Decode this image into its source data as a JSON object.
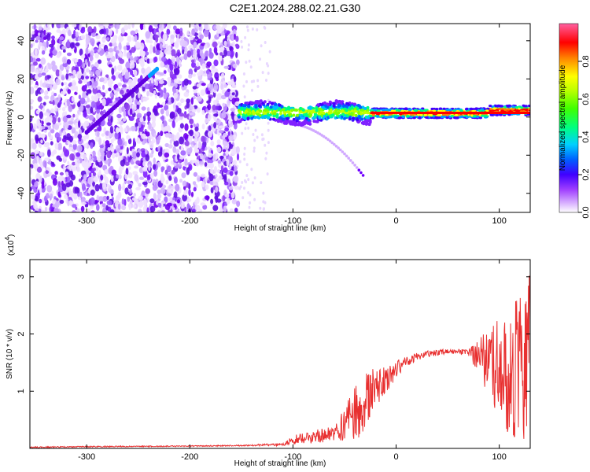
{
  "title": "C2E1.2024.288.02.21.G30",
  "chart_data": [
    {
      "type": "heatmap",
      "xlabel": "Height of straight line (km)",
      "ylabel": "Frequency (Hz)",
      "xlim": [
        -355,
        130
      ],
      "ylim": [
        -50,
        49
      ],
      "x_ticks": [
        -300,
        -200,
        -100,
        0,
        100
      ],
      "y_ticks": [
        -40,
        -20,
        0,
        20,
        40
      ],
      "colorbar": {
        "label": "Normalized spectral amplitude",
        "range": [
          0,
          1
        ],
        "ticks": [
          "0.0",
          "0.2",
          "0.4",
          "0.6",
          "0.8"
        ],
        "colors": [
          "#ffffff",
          "#c080ff",
          "#8000ff",
          "#0000ff",
          "#00c0ff",
          "#00ff80",
          "#80ff00",
          "#ffff00",
          "#ff8000",
          "#ff0000",
          "#ff60a0"
        ]
      },
      "regions": [
        {
          "x_range": [
            -355,
            -153
          ],
          "freq_range": [
            -50,
            49
          ],
          "amplitude": "0.0-0.15",
          "pattern": "scattered noise"
        },
        {
          "x_range": [
            -153,
            -25
          ],
          "center_freq_hz": [
            2,
            3
          ],
          "amplitude": "0.2-0.6",
          "pattern": "band"
        },
        {
          "x_range": [
            -25,
            130
          ],
          "center_freq_hz": [
            1,
            3
          ],
          "amplitude": "0.8-1.0",
          "pattern": "strong line"
        },
        {
          "x_range": [
            -110,
            -30
          ],
          "freq_range": [
            -3,
            -32
          ],
          "amplitude": "0.1-0.3",
          "pattern": "descending streak"
        }
      ]
    },
    {
      "type": "line",
      "xlabel": "Height of straight line (km)",
      "ylabel": "SNR (10 * v/v)",
      "y_multiplier": "(x10",
      "y_multiplier_exp": "4",
      "xlim": [
        -355,
        130
      ],
      "ylim": [
        0,
        3.3
      ],
      "x_ticks": [
        -300,
        -200,
        -100,
        0,
        100
      ],
      "y_ticks": [
        1,
        2,
        3
      ],
      "color": "#e83030",
      "x": [
        -355,
        -300,
        -200,
        -150,
        -110,
        -100,
        -80,
        -60,
        -50,
        -40,
        -30,
        -20,
        -10,
        0,
        10,
        20,
        30,
        40,
        50,
        60,
        70,
        80,
        90,
        100,
        110,
        120,
        130
      ],
      "y": [
        0.02,
        0.03,
        0.04,
        0.05,
        0.07,
        0.15,
        0.2,
        0.25,
        0.4,
        0.6,
        0.85,
        1.05,
        1.2,
        1.4,
        1.52,
        1.6,
        1.65,
        1.68,
        1.7,
        1.7,
        1.68,
        1.6,
        1.5,
        1.4,
        1.3,
        1.5,
        1.6
      ],
      "y_spread": [
        0,
        0,
        0,
        0,
        0.02,
        0.08,
        0.1,
        0.15,
        0.3,
        0.55,
        0.5,
        0.35,
        0.25,
        0.15,
        0.1,
        0.06,
        0.05,
        0.05,
        0.04,
        0.04,
        0.05,
        0.3,
        0.6,
        0.9,
        1.2,
        1.4,
        1.5
      ]
    }
  ]
}
